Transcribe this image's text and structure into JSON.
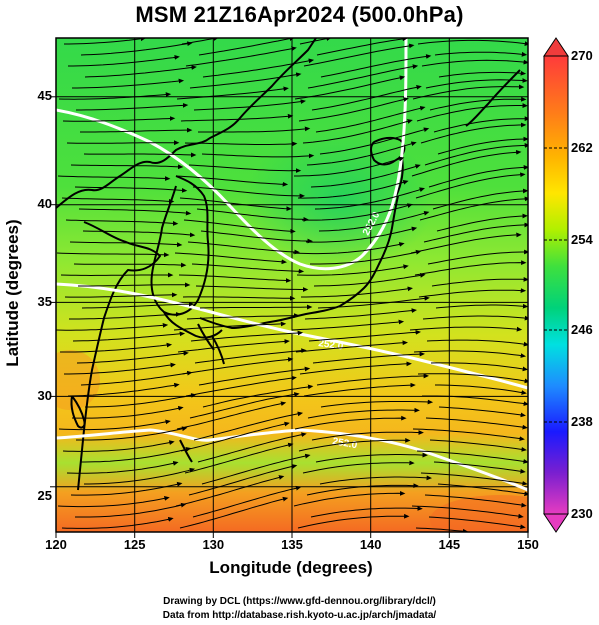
{
  "title": "MSM 21Z16Apr2024 (500.0hPa)",
  "axes": {
    "xlabel": "Longitude (degrees)",
    "ylabel": "Latitude  (degrees)",
    "xticks": [
      "120",
      "125",
      "130",
      "135",
      "140",
      "145",
      "150"
    ],
    "yticks": [
      "25",
      "30",
      "35",
      "40",
      "45"
    ],
    "xlim": [
      120,
      150
    ],
    "ylim": [
      22.4,
      47.6
    ]
  },
  "colorbar": {
    "ticks": [
      "270",
      "262",
      "254",
      "246",
      "238",
      "230"
    ],
    "range": [
      230,
      270
    ],
    "colors": [
      "#e040b0",
      "#8a2be2",
      "#1a1aff",
      "#1e90ff",
      "#00e0e0",
      "#00d060",
      "#40e040",
      "#c8f000",
      "#ffd000",
      "#ff8000",
      "#ff3030"
    ]
  },
  "credits": {
    "line1": "Drawing by DCL (https://www.gfd-dennou.org/library/dcl/)",
    "line2": "Data from http://database.rish.kyoto-u.ac.jp/arch/jmadata/"
  },
  "map_data": {
    "variable": "temperature (K) with wind streamlines",
    "contour_labels": [
      "252.0",
      "252.0",
      "252.0",
      "252.0"
    ]
  }
}
